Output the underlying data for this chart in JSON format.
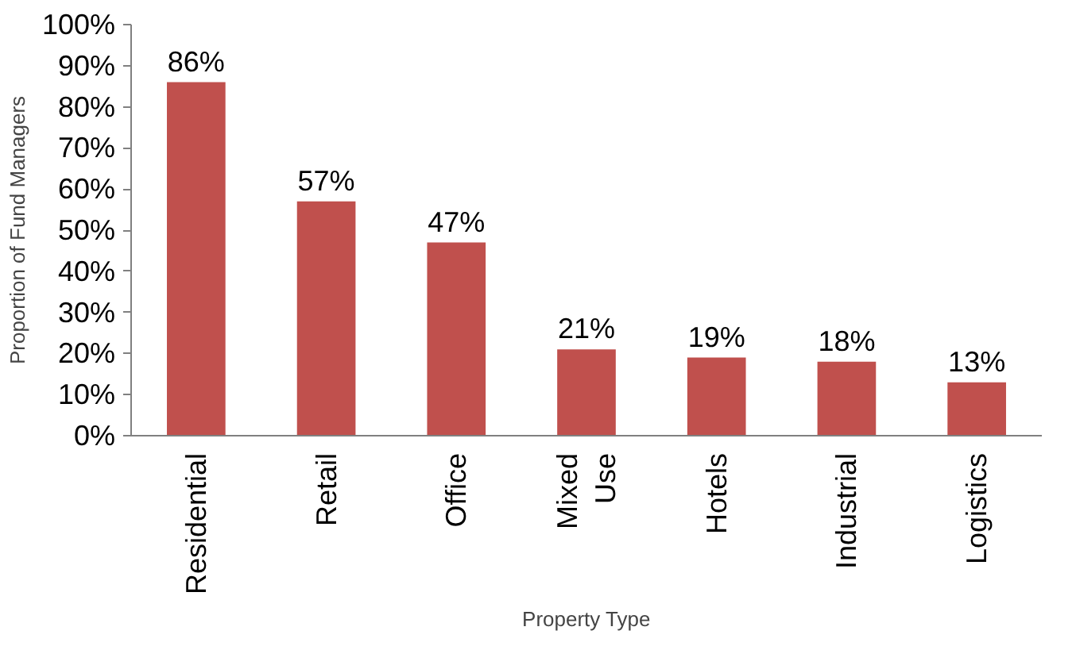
{
  "chart_data": {
    "type": "bar",
    "xlabel": "Property Type",
    "ylabel": "Proportion of Fund Managers",
    "categories": [
      "Residential",
      "Retail",
      "Office",
      "Mixed Use",
      "Hotels",
      "Industrial",
      "Logistics"
    ],
    "values": [
      86,
      57,
      47,
      21,
      19,
      18,
      13
    ],
    "value_labels": [
      "86%",
      "57%",
      "47%",
      "21%",
      "19%",
      "18%",
      "13%"
    ],
    "color": "#c0504d",
    "ylim": [
      0,
      100
    ],
    "yticks": [
      {
        "value": 0,
        "label": "0%"
      },
      {
        "value": 10,
        "label": "10%"
      },
      {
        "value": 20,
        "label": "20%"
      },
      {
        "value": 30,
        "label": "30%"
      },
      {
        "value": 40,
        "label": "40%"
      },
      {
        "value": 50,
        "label": "50%"
      },
      {
        "value": 60,
        "label": "60%"
      },
      {
        "value": 70,
        "label": "70%"
      },
      {
        "value": 80,
        "label": "80%"
      },
      {
        "value": 90,
        "label": "90%"
      },
      {
        "value": 100,
        "label": "100%"
      }
    ],
    "grid": false
  }
}
